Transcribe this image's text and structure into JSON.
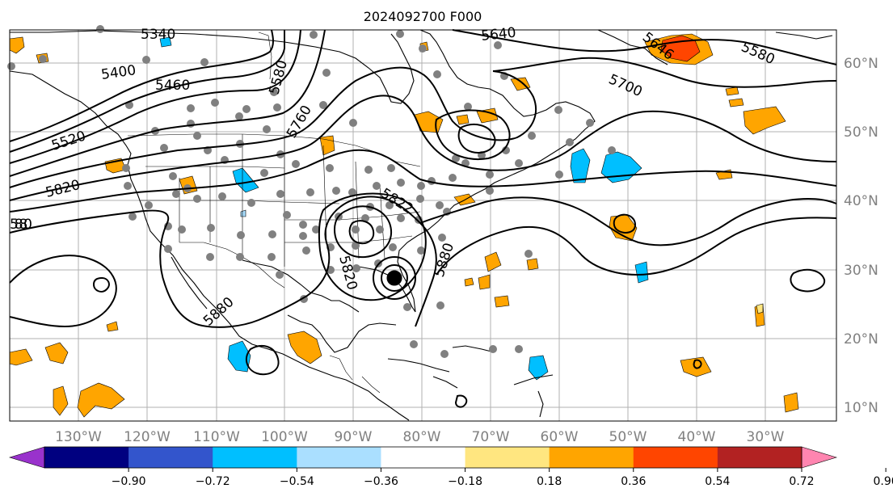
{
  "title": "2024092700 F000",
  "lon_labels": [
    "130°W",
    "120°W",
    "110°W",
    "100°W",
    "90°W",
    "80°W",
    "70°W",
    "60°W",
    "50°W",
    "40°W",
    "30°W"
  ],
  "lat_labels": [
    "60°N",
    "50°N",
    "40°N",
    "30°N",
    "20°N",
    "10°N"
  ],
  "contour_labels": [
    "5340",
    "5400",
    "5460",
    "5520",
    "5580",
    "5640",
    "5646",
    "5580",
    "5700",
    "5760",
    "5820",
    "5822",
    "5880",
    "5820",
    "5880",
    "5880"
  ],
  "colorbar": {
    "colors": [
      "#9932cc",
      "#000080",
      "#3355cc",
      "#00bfff",
      "#aadfff",
      "#ffffff",
      "#ffe680",
      "#ffa500",
      "#ff4500",
      "#b22222",
      "#ff85b0"
    ],
    "tick_labels": [
      "−0.90",
      "−0.72",
      "−0.54",
      "−0.36",
      "−0.18",
      "0.18",
      "0.36",
      "0.54",
      "0.72",
      "0.90"
    ],
    "extend": "both"
  },
  "colors": {
    "orange": "#ffa500",
    "red": "#ff4500",
    "light_blue": "#00bfff",
    "pale_blue": "#aadfff",
    "station_dot": "#808080"
  }
}
